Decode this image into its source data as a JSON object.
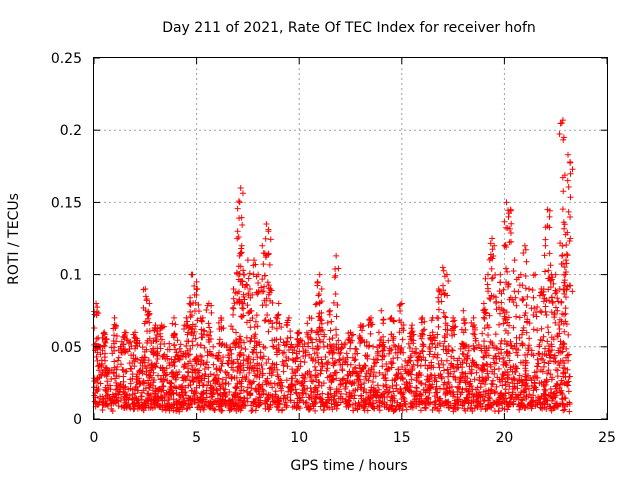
{
  "chart_data": {
    "type": "scatter",
    "title": "Day 211 of 2021, Rate Of TEC Index for receiver hofn",
    "xlabel": "GPS time / hours",
    "ylabel": "ROTI / TECUs",
    "xlim": [
      0,
      25
    ],
    "ylim": [
      0,
      0.25
    ],
    "xticks": [
      "0",
      "5",
      "10",
      "15",
      "20",
      "25"
    ],
    "yticks": [
      "0",
      "0.05",
      "0.1",
      "0.15",
      "0.2",
      "0.25"
    ],
    "grid": true,
    "marker": "+",
    "color": "#ff0000",
    "series": [
      {
        "name": "hofn",
        "x": [
          0.1,
          0.2,
          0.5,
          1.0,
          1.5,
          2.0,
          2.5,
          2.7,
          3.0,
          3.3,
          3.9,
          4.5,
          4.7,
          4.8,
          5.0,
          5.3,
          5.6,
          6.2,
          6.8,
          7.0,
          7.1,
          7.15,
          7.2,
          7.3,
          7.5,
          7.6,
          7.8,
          8.0,
          8.2,
          8.4,
          8.5,
          8.6,
          9.0,
          9.5,
          10.0,
          10.5,
          10.9,
          11.0,
          11.1,
          11.5,
          11.8,
          12.5,
          13.0,
          13.5,
          14.0,
          14.5,
          15.0,
          15.5,
          16.0,
          16.5,
          16.8,
          17.0,
          17.2,
          17.5,
          18.0,
          18.5,
          19.0,
          19.2,
          19.4,
          19.5,
          19.8,
          20.0,
          20.1,
          20.2,
          20.3,
          20.5,
          20.8,
          21.0,
          21.2,
          21.5,
          21.8,
          22.0,
          22.1,
          22.2,
          22.3,
          22.5,
          22.7,
          22.8,
          22.85,
          22.9,
          23.0,
          23.1,
          23.2
        ],
        "y": [
          0.08,
          0.05,
          0.06,
          0.07,
          0.06,
          0.06,
          0.09,
          0.08,
          0.065,
          0.065,
          0.07,
          0.07,
          0.08,
          0.1,
          0.095,
          0.07,
          0.08,
          0.07,
          0.09,
          0.13,
          0.15,
          0.16,
          0.12,
          0.1,
          0.11,
          0.09,
          0.11,
          0.1,
          0.12,
          0.135,
          0.13,
          0.09,
          0.08,
          0.07,
          0.06,
          0.07,
          0.095,
          0.1,
          0.09,
          0.075,
          0.113,
          0.06,
          0.065,
          0.07,
          0.075,
          0.07,
          0.08,
          0.065,
          0.07,
          0.07,
          0.09,
          0.105,
          0.1,
          0.07,
          0.075,
          0.07,
          0.08,
          0.1,
          0.125,
          0.12,
          0.1,
          0.12,
          0.15,
          0.14,
          0.145,
          0.11,
          0.1,
          0.12,
          0.09,
          0.1,
          0.09,
          0.12,
          0.145,
          0.14,
          0.1,
          0.1,
          0.09,
          0.205,
          0.207,
          0.195,
          0.11,
          0.183,
          0.178
        ]
      }
    ],
    "band": {
      "description": "dense baseline cluster",
      "ymin": 0.005,
      "ymax": 0.05,
      "xmax": 23.2
    }
  }
}
